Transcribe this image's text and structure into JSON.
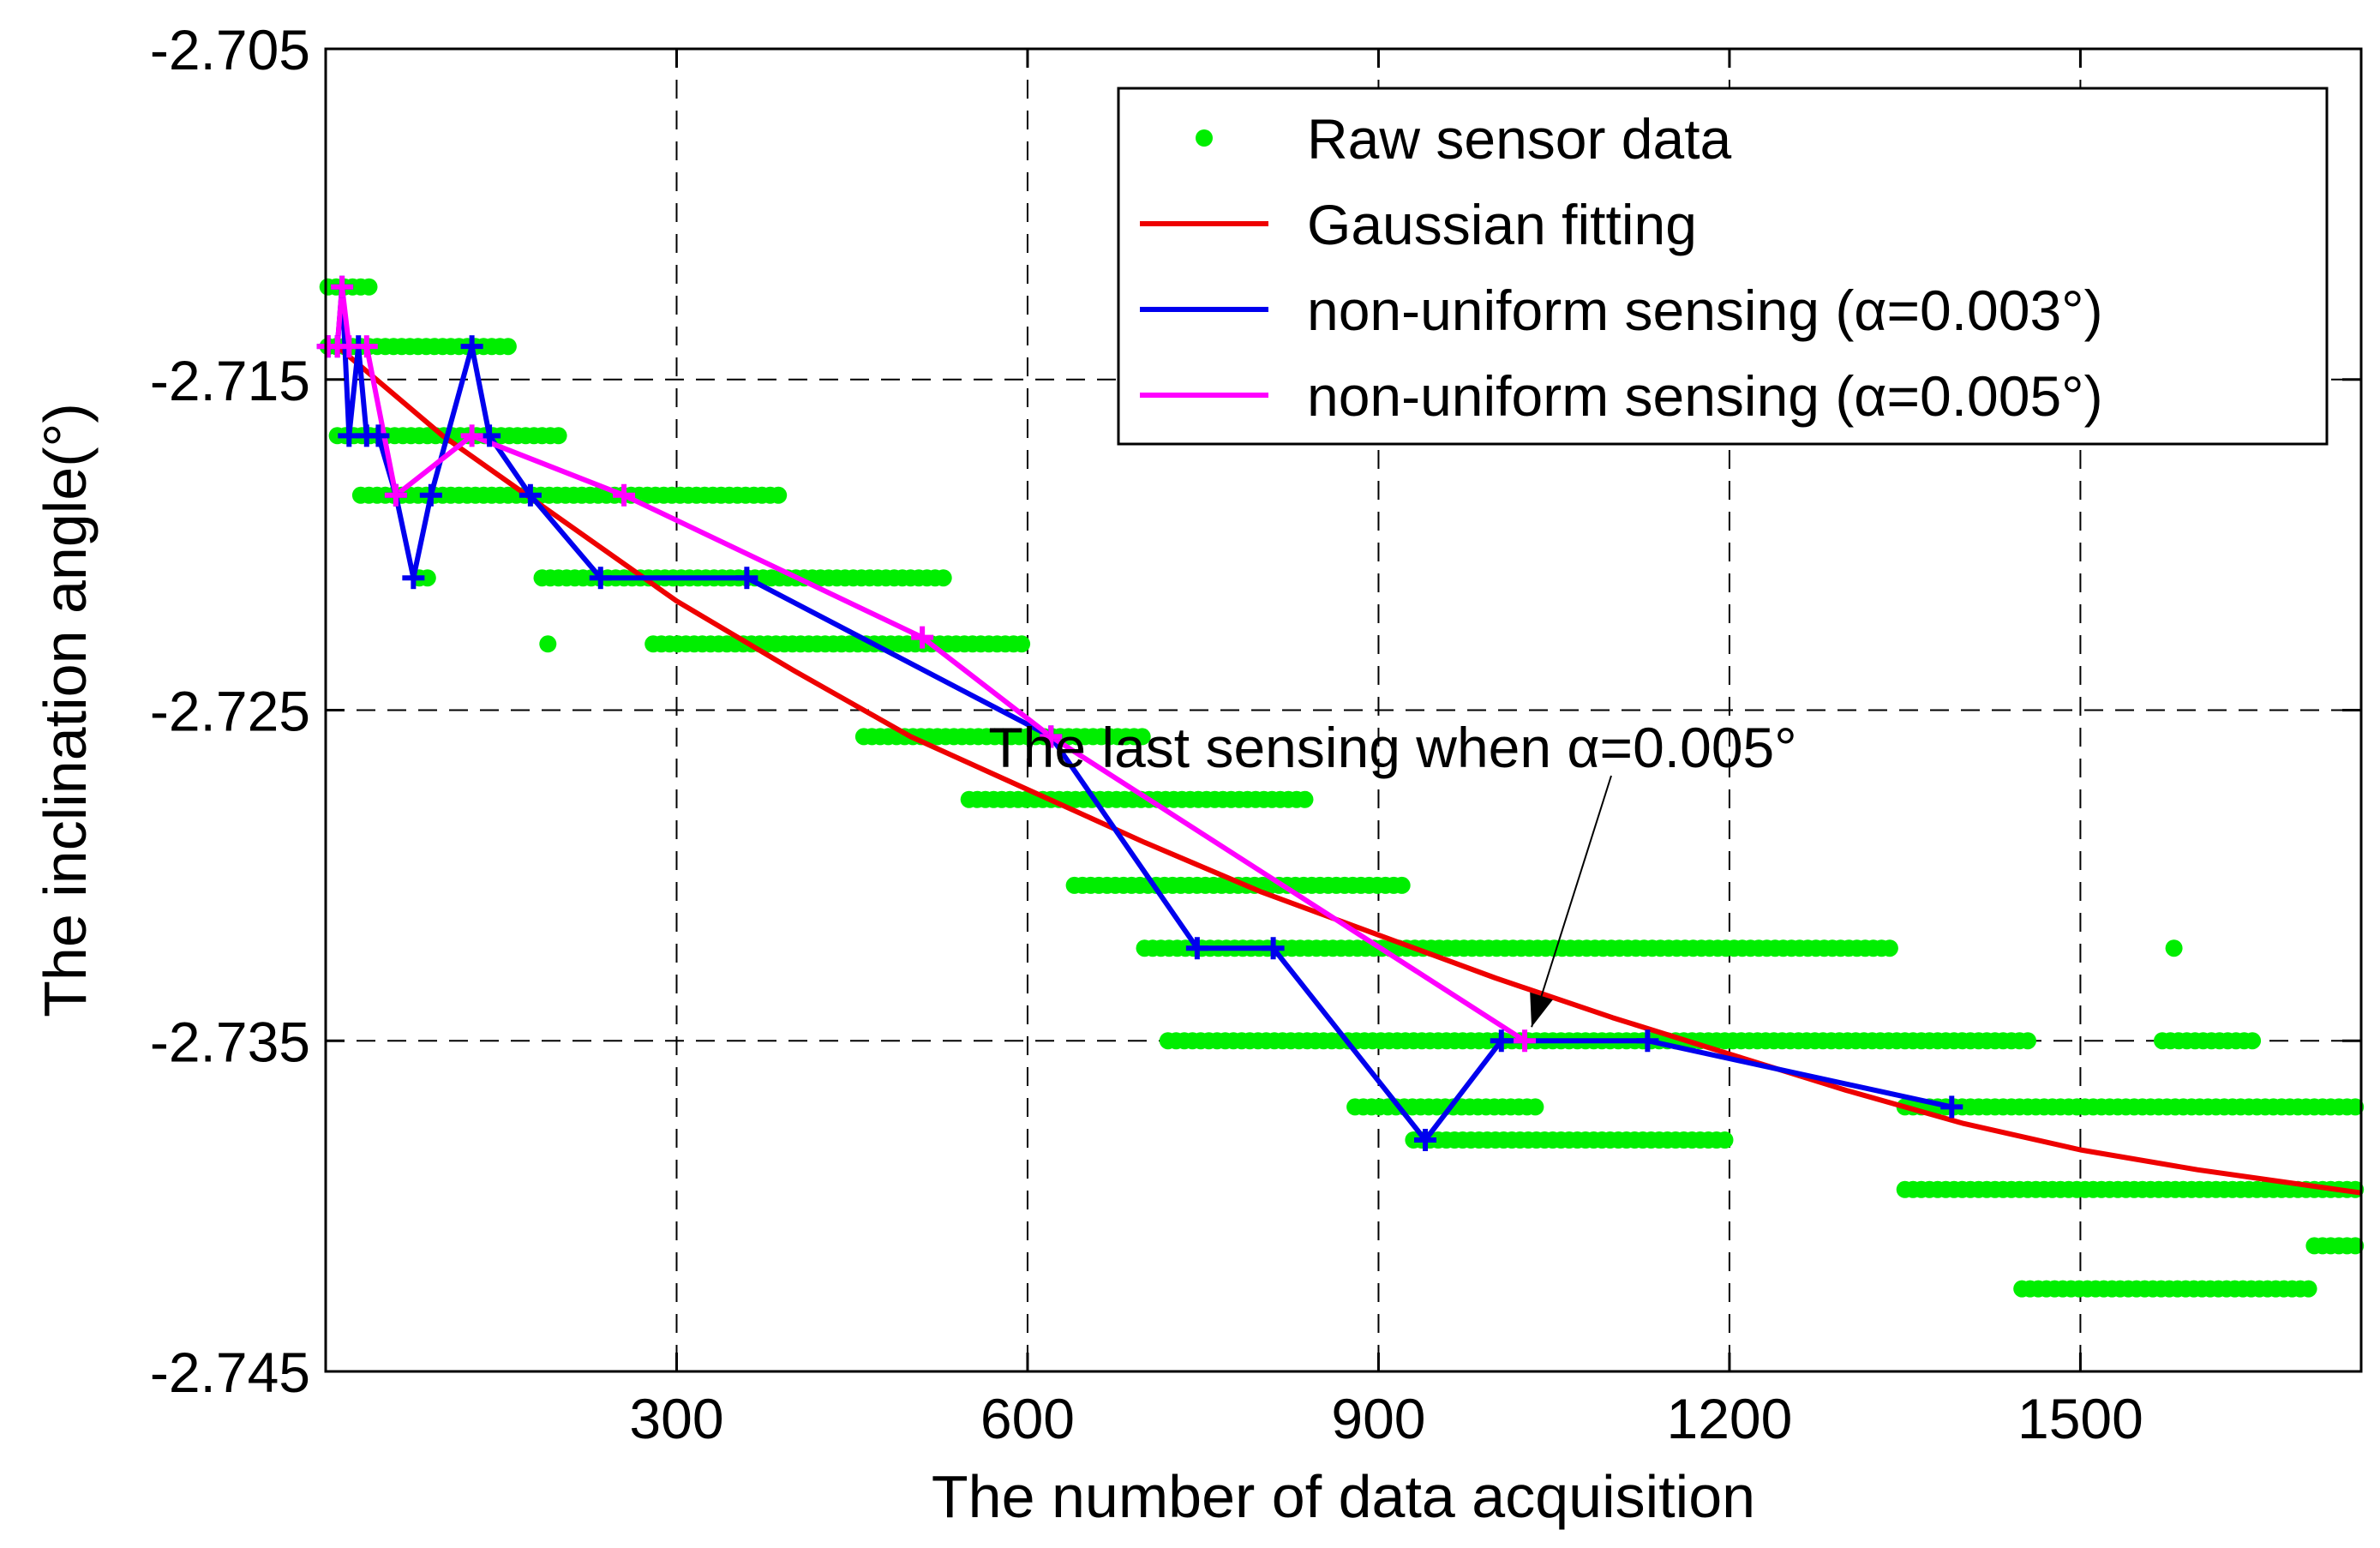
{
  "chart_data": {
    "type": "line",
    "title": "",
    "xlabel": "The number of data acquisition",
    "ylabel": "The inclination angle(°)",
    "xlim": [
      0,
      1740
    ],
    "ylim": [
      -2.745,
      -2.705
    ],
    "xticks": [
      300,
      600,
      900,
      1200,
      1500
    ],
    "xtick_labels": [
      "300",
      "600",
      "900",
      "1200",
      "1500"
    ],
    "yticks": [
      -2.705,
      -2.715,
      -2.725,
      -2.735,
      -2.745
    ],
    "ytick_labels": [
      "-2.705",
      "-2.715",
      "-2.725",
      "-2.735",
      "-2.745"
    ],
    "grid": true,
    "legend_position": "top-right",
    "colors": {
      "raw": "#00ee00",
      "gaussian": "#ee0000",
      "alpha003": "#0000ee",
      "alpha005": "#ff00ff"
    },
    "series": [
      {
        "name": "Raw sensor data",
        "style": "markers",
        "levels": [
          {
            "y": -2.7122,
            "ranges": [
              [
                2,
                40
              ]
            ]
          },
          {
            "y": -2.714,
            "ranges": [
              [
                2,
                160
              ]
            ]
          },
          {
            "y": -2.7167,
            "ranges": [
              [
                10,
                200
              ]
            ]
          },
          {
            "y": -2.7185,
            "ranges": [
              [
                30,
                390
              ]
            ]
          },
          {
            "y": -2.721,
            "ranges": [
              [
                80,
                90
              ],
              [
                185,
                530
              ]
            ]
          },
          {
            "y": -2.723,
            "ranges": [
              [
                190,
                190
              ],
              [
                280,
                600
              ]
            ]
          },
          {
            "y": -2.7258,
            "ranges": [
              [
                460,
                700
              ]
            ]
          },
          {
            "y": -2.7277,
            "ranges": [
              [
                550,
                840
              ]
            ]
          },
          {
            "y": -2.7303,
            "ranges": [
              [
                640,
                920
              ]
            ]
          },
          {
            "y": -2.7322,
            "ranges": [
              [
                700,
                1340
              ],
              [
                1580,
                1580
              ]
            ]
          },
          {
            "y": -2.735,
            "ranges": [
              [
                720,
                1460
              ],
              [
                1570,
                1650
              ]
            ]
          },
          {
            "y": -2.737,
            "ranges": [
              [
                880,
                1040
              ],
              [
                1350,
                1740
              ]
            ]
          },
          {
            "y": -2.738,
            "ranges": [
              [
                930,
                1200
              ]
            ]
          },
          {
            "y": -2.7395,
            "ranges": [
              [
                1350,
                1740
              ]
            ]
          },
          {
            "y": -2.7412,
            "ranges": [
              [
                1700,
                1740
              ]
            ]
          },
          {
            "y": -2.7425,
            "ranges": [
              [
                1450,
                1700
              ]
            ]
          }
        ]
      },
      {
        "name": "Gaussian fitting",
        "style": "line",
        "x": [
          10,
          100,
          200,
          300,
          400,
          500,
          600,
          700,
          800,
          900,
          1000,
          1100,
          1200,
          1300,
          1400,
          1500,
          1600,
          1700,
          1740
        ],
        "y": [
          -2.714,
          -2.7167,
          -2.7192,
          -2.7217,
          -2.7238,
          -2.7258,
          -2.7274,
          -2.729,
          -2.7305,
          -2.7318,
          -2.7331,
          -2.7343,
          -2.7354,
          -2.7365,
          -2.7375,
          -2.7383,
          -2.7389,
          -2.7394,
          -2.7396
        ]
      },
      {
        "name": "non-uniform sensing (α=0.003°)",
        "style": "line+markers",
        "x": [
          2,
          10,
          14,
          20,
          28,
          35,
          45,
          60,
          75,
          90,
          125,
          140,
          175,
          235,
          360,
          620,
          745,
          810,
          940,
          1005,
          1130,
          1390
        ],
        "y": [
          -2.714,
          -2.714,
          -2.7122,
          -2.7167,
          -2.714,
          -2.7167,
          -2.7167,
          -2.7185,
          -2.721,
          -2.7185,
          -2.714,
          -2.7167,
          -2.7185,
          -2.721,
          -2.721,
          -2.7258,
          -2.7322,
          -2.7322,
          -2.738,
          -2.735,
          -2.735,
          -2.737
        ]
      },
      {
        "name": "non-uniform sensing (α=0.005°)",
        "style": "line+markers",
        "x": [
          2,
          10,
          14,
          20,
          35,
          60,
          125,
          255,
          510,
          620,
          1025
        ],
        "y": [
          -2.714,
          -2.714,
          -2.7122,
          -2.714,
          -2.714,
          -2.7185,
          -2.7167,
          -2.7185,
          -2.7228,
          -2.7258,
          -2.735
        ]
      }
    ],
    "annotation": {
      "text": "The last sensing when α=0.005°",
      "target_x": 1025,
      "target_y": -2.735
    }
  }
}
